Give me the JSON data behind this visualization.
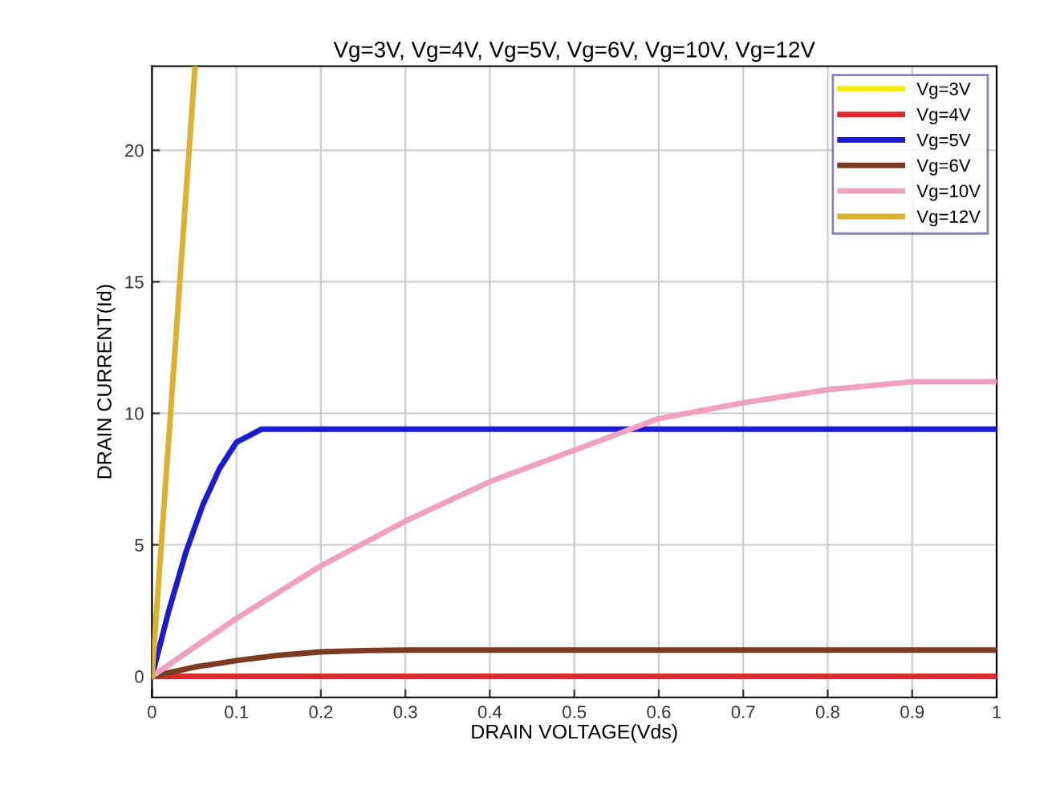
{
  "chart_data": {
    "type": "line",
    "title": "Vg=3V, Vg=4V, Vg=5V, Vg=6V, Vg=10V, Vg=12V",
    "xlabel": "DRAIN VOLTAGE(Vds)",
    "ylabel": "DRAIN CURRENT(Id)",
    "xlim": [
      0,
      1
    ],
    "xticks": [
      0,
      0.1,
      0.2,
      0.3,
      0.4,
      0.5,
      0.6,
      0.7,
      0.8,
      0.9,
      1
    ],
    "ylim": [
      -0.8,
      23.2
    ],
    "yticks": [
      0,
      5,
      10,
      15,
      20
    ],
    "grid": true,
    "legend": "top right",
    "line_style": "solid",
    "marker": "none",
    "series": [
      {
        "name": "Vg=3V",
        "color": "#f5f000"
      },
      {
        "name": "Vg=4V",
        "color": "#d92b2b",
        "x": [
          0,
          1
        ],
        "values": [
          0,
          0
        ]
      },
      {
        "name": "Vg=5V",
        "color": "#1c1ccf",
        "x": [
          0,
          0.02,
          0.04,
          0.06,
          0.08,
          0.1,
          0.13,
          1
        ],
        "values": [
          0,
          2.5,
          4.7,
          6.5,
          7.9,
          8.9,
          9.4,
          9.4
        ]
      },
      {
        "name": "Vg=6V",
        "color": "#7b3a22",
        "x": [
          0,
          0.05,
          0.1,
          0.15,
          0.2,
          0.25,
          0.3,
          1
        ],
        "values": [
          0,
          0.35,
          0.6,
          0.8,
          0.93,
          0.98,
          1.0,
          1.0
        ]
      },
      {
        "name": "Vg=10V",
        "color": "#f0a0c0",
        "x": [
          0,
          0.1,
          0.2,
          0.3,
          0.4,
          0.5,
          0.6,
          0.7,
          0.8,
          0.9,
          1
        ],
        "values": [
          0,
          2.2,
          4.2,
          5.9,
          7.4,
          8.6,
          9.8,
          10.4,
          10.9,
          11.2,
          11.2
        ]
      },
      {
        "name": "Vg=12V",
        "color": "#dcb030",
        "x": [
          0,
          0.051
        ],
        "values": [
          0,
          23.2
        ]
      }
    ]
  }
}
